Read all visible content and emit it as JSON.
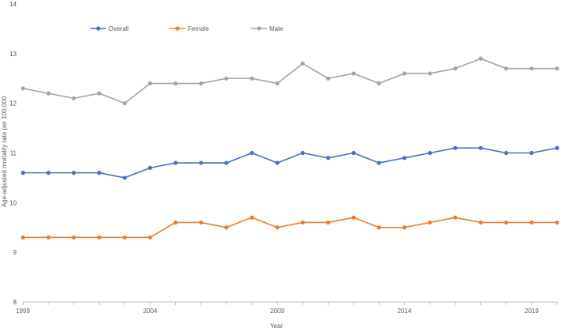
{
  "chart_data": {
    "type": "line",
    "x": [
      1999,
      2000,
      2001,
      2002,
      2003,
      2004,
      2005,
      2006,
      2007,
      2008,
      2009,
      2010,
      2011,
      2012,
      2013,
      2014,
      2015,
      2016,
      2017,
      2018,
      2019,
      2020
    ],
    "x_tick_labels": [
      "1999",
      "2004",
      "2009",
      "2014",
      "2019"
    ],
    "xlim": [
      1999,
      2020
    ],
    "ylim": [
      8,
      14
    ],
    "y_tick_labels": [
      "8",
      "9",
      "10",
      "11",
      "12",
      "13",
      "14"
    ],
    "xlabel": "Year",
    "ylabel": "Age-adjusted mortality rate per 100,000",
    "grid": false,
    "legend_position": "top",
    "series": [
      {
        "name": "Overall",
        "color": "#4472C4",
        "values": [
          10.6,
          10.6,
          10.6,
          10.6,
          10.5,
          10.7,
          10.8,
          10.8,
          10.8,
          11.0,
          10.8,
          11.0,
          10.9,
          11.0,
          10.8,
          10.9,
          11.0,
          11.1,
          11.1,
          11.0,
          11.0,
          11.1
        ]
      },
      {
        "name": "Female",
        "color": "#ED7D31",
        "values": [
          9.3,
          9.3,
          9.3,
          9.3,
          9.3,
          9.3,
          9.6,
          9.6,
          9.5,
          9.7,
          9.5,
          9.6,
          9.6,
          9.7,
          9.5,
          9.5,
          9.6,
          9.7,
          9.6,
          9.6,
          9.6,
          9.6
        ]
      },
      {
        "name": "Male",
        "color": "#A5A5A5",
        "values": [
          12.3,
          12.2,
          12.1,
          12.2,
          12.0,
          12.4,
          12.4,
          12.4,
          12.5,
          12.5,
          12.4,
          12.8,
          12.5,
          12.6,
          12.4,
          12.6,
          12.6,
          12.7,
          12.9,
          12.7,
          12.7,
          12.7
        ]
      }
    ]
  }
}
